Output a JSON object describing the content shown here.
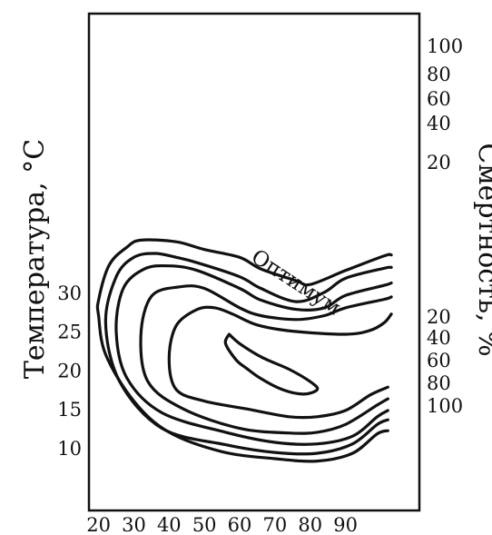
{
  "chart_data": {
    "type": "contour",
    "title": "",
    "xlabel": "",
    "ylabel": "Температура, °C",
    "right_label": "Смертность, %",
    "x_ticks": [
      20,
      30,
      40,
      50,
      60,
      70,
      80,
      90
    ],
    "y_ticks": [
      10,
      15,
      20,
      25,
      30
    ],
    "xlim": [
      15,
      105
    ],
    "ylim": [
      5,
      35
    ],
    "center_label": "Оптимум",
    "contour_levels_upper": [
      "100",
      "80",
      "60",
      "40",
      "20"
    ],
    "contour_levels_lower": [
      "20",
      "40",
      "60",
      "80",
      "100"
    ],
    "contours": [
      {
        "level": "20",
        "points": [
          [
            103,
            27.2
          ],
          [
            101,
            26.1
          ],
          [
            97,
            25.1
          ],
          [
            90,
            24.6
          ],
          [
            75,
            25.0
          ],
          [
            65,
            25.8
          ],
          [
            58,
            27.2
          ],
          [
            53,
            28.0
          ],
          [
            48,
            27.8
          ],
          [
            42,
            25.7
          ],
          [
            40,
            21.5
          ],
          [
            42,
            17.5
          ],
          [
            50,
            16.0
          ],
          [
            62,
            15.0
          ],
          [
            74,
            14.0
          ],
          [
            82,
            14.0
          ],
          [
            90,
            14.8
          ],
          [
            97,
            16.8
          ],
          [
            102,
            17.8
          ]
        ]
      },
      {
        "level": "40",
        "points": [
          [
            103,
            29.4
          ],
          [
            101,
            29.1
          ],
          [
            90,
            28.0
          ],
          [
            84,
            27.0
          ],
          [
            76,
            26.5
          ],
          [
            66,
            27.0
          ],
          [
            60,
            28.0
          ],
          [
            50,
            30.5
          ],
          [
            43,
            30.7
          ],
          [
            35,
            29.5
          ],
          [
            32,
            24.5
          ],
          [
            34,
            18.5
          ],
          [
            44,
            15.0
          ],
          [
            60,
            12.5
          ],
          [
            74,
            11.9
          ],
          [
            82,
            12.0
          ],
          [
            90,
            13.0
          ],
          [
            99,
            15.5
          ],
          [
            102,
            16.3
          ]
        ]
      },
      {
        "level": "60",
        "points": [
          [
            103,
            31.2
          ],
          [
            101,
            30.9
          ],
          [
            90,
            29.6
          ],
          [
            84,
            28.0
          ],
          [
            76,
            27.8
          ],
          [
            66,
            29.0
          ],
          [
            60,
            30.5
          ],
          [
            48,
            32.8
          ],
          [
            40,
            33.4
          ],
          [
            33,
            33.0
          ],
          [
            27,
            30.5
          ],
          [
            25,
            25.0
          ],
          [
            28,
            19.0
          ],
          [
            38,
            14.5
          ],
          [
            56,
            12.0
          ],
          [
            70,
            10.7
          ],
          [
            82,
            10.5
          ],
          [
            92,
            11.5
          ],
          [
            99,
            14.0
          ],
          [
            102,
            14.8
          ]
        ]
      },
      {
        "level": "80",
        "points": [
          [
            103,
            33.2
          ],
          [
            101,
            33.1
          ],
          [
            90,
            31.8
          ],
          [
            84,
            30.0
          ],
          [
            76,
            28.8
          ],
          [
            66,
            30.5
          ],
          [
            60,
            32.0
          ],
          [
            48,
            33.8
          ],
          [
            42,
            34.5
          ],
          [
            36,
            35.0
          ],
          [
            30,
            34.5
          ],
          [
            25,
            32.0
          ],
          [
            22,
            26.0
          ],
          [
            26,
            18.5
          ],
          [
            38,
            12.5
          ],
          [
            56,
            10.4
          ],
          [
            70,
            9.4
          ],
          [
            82,
            9.3
          ],
          [
            92,
            10.5
          ],
          [
            99,
            13.0
          ],
          [
            102,
            13.6
          ]
        ]
      },
      {
        "level": "100",
        "points": [
          [
            103,
            34.8
          ],
          [
            101,
            34.7
          ],
          [
            90,
            32.8
          ],
          [
            80,
            31.0
          ],
          [
            76,
            31.5
          ],
          [
            66,
            33.0
          ],
          [
            60,
            34.5
          ],
          [
            50,
            35.5
          ],
          [
            42,
            36.5
          ],
          [
            32,
            36.7
          ],
          [
            28,
            35.8
          ],
          [
            23,
            33.5
          ],
          [
            20,
            29.0
          ],
          [
            20,
            27.0
          ],
          [
            22,
            22.0
          ],
          [
            30,
            16.0
          ],
          [
            40,
            12.0
          ],
          [
            55,
            9.5
          ],
          [
            70,
            8.6
          ],
          [
            82,
            8.3
          ],
          [
            92,
            9.3
          ],
          [
            99,
            11.8
          ],
          [
            102,
            12.2
          ]
        ]
      },
      {
        "level": "opt",
        "points": [
          [
            57,
            24.6
          ],
          [
            60,
            23.4
          ],
          [
            66,
            21.7
          ],
          [
            74,
            20.1
          ],
          [
            80,
            18.5
          ],
          [
            82,
            17.5
          ],
          [
            78,
            16.9
          ],
          [
            72,
            17.5
          ],
          [
            66,
            18.9
          ],
          [
            62,
            20.2
          ],
          [
            59,
            21.3
          ],
          [
            56,
            23.4
          ],
          [
            57,
            24.6
          ]
        ]
      }
    ]
  }
}
